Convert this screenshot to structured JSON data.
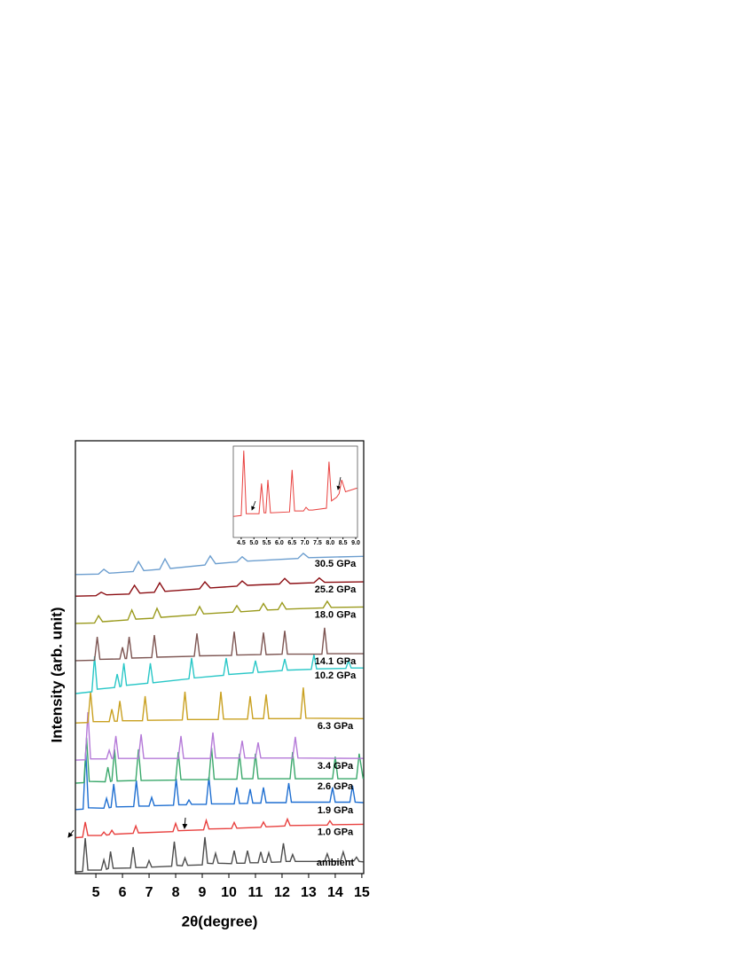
{
  "chart_data": [
    {
      "type": "line",
      "xlabel": "2θ(degree)",
      "ylabel": "Intensity (arb. unit)",
      "xlim": [
        4.23,
        15.07
      ],
      "xticks": [
        5,
        6,
        7,
        8,
        9,
        10,
        11,
        12,
        13,
        14,
        15
      ],
      "ylim": [
        0,
        100
      ],
      "series": [
        {
          "name": "ambient",
          "color": "#4d4d4d",
          "x": [
            4.25,
            4.5,
            4.6,
            4.7,
            5.2,
            5.3,
            5.4,
            5.47,
            5.55,
            5.65,
            6.3,
            6.4,
            6.5,
            6.9,
            7.0,
            7.1,
            7.85,
            7.95,
            8.05,
            8.25,
            8.35,
            8.45,
            9.0,
            9.1,
            9.2,
            9.4,
            9.5,
            9.6,
            10.1,
            10.2,
            10.3,
            10.6,
            10.7,
            10.8,
            11.1,
            11.2,
            11.3,
            11.4,
            11.5,
            11.6,
            11.95,
            12.05,
            12.15,
            12.3,
            12.4,
            12.5,
            13.6,
            13.7,
            13.8,
            14.2,
            14.3,
            14.4,
            14.7,
            14.8,
            14.9,
            15.05
          ],
          "values": [
            0.4,
            0.5,
            8.2,
            0.8,
            0.8,
            3.2,
            1.0,
            1.2,
            5.1,
            1.2,
            1.3,
            6.1,
            1.4,
            1.4,
            3.0,
            1.5,
            1.7,
            7.4,
            1.9,
            1.8,
            3.6,
            1.9,
            2.0,
            8.4,
            2.4,
            2.3,
            4.7,
            2.4,
            2.3,
            5.3,
            2.4,
            2.4,
            5.3,
            2.5,
            2.5,
            5.0,
            2.6,
            2.6,
            4.8,
            2.6,
            2.7,
            7.0,
            2.8,
            2.8,
            4.4,
            2.8,
            2.8,
            4.6,
            2.8,
            2.9,
            5.0,
            2.9,
            2.9,
            3.8,
            2.8,
            2.7
          ]
        },
        {
          "name": "1.0 GPa",
          "color": "#e8403e",
          "x": [
            4.25,
            4.5,
            4.6,
            4.7,
            5.2,
            5.3,
            5.4,
            5.5,
            5.6,
            5.7,
            6.4,
            6.5,
            6.6,
            7.9,
            8.0,
            8.1,
            9.05,
            9.15,
            9.25,
            10.1,
            10.2,
            10.3,
            11.2,
            11.3,
            11.4,
            12.1,
            12.2,
            12.3,
            13.7,
            13.8,
            13.9,
            15.05
          ],
          "values": [
            8.3,
            8.4,
            11.9,
            8.8,
            8.8,
            9.6,
            8.9,
            9.0,
            10.0,
            9.1,
            9.3,
            11.0,
            9.4,
            9.7,
            11.6,
            9.9,
            10.1,
            12.3,
            10.3,
            10.4,
            11.8,
            10.5,
            10.7,
            11.9,
            10.8,
            11.0,
            12.6,
            11.1,
            11.2,
            12.2,
            11.3,
            11.4
          ]
        },
        {
          "name": "1.9 GPa",
          "color": "#1f6fd1",
          "x": [
            4.25,
            4.52,
            4.62,
            4.72,
            5.3,
            5.4,
            5.5,
            5.57,
            5.67,
            5.77,
            6.42,
            6.52,
            6.62,
            7.0,
            7.1,
            7.2,
            7.92,
            8.02,
            8.12,
            8.4,
            8.5,
            8.6,
            9.15,
            9.25,
            9.35,
            10.2,
            10.3,
            10.4,
            10.7,
            10.8,
            10.9,
            11.2,
            11.3,
            11.4,
            12.15,
            12.25,
            12.35,
            13.8,
            13.9,
            14.0,
            14.55,
            14.65,
            14.75,
            15.05
          ],
          "values": [
            14.8,
            14.9,
            28.0,
            15.2,
            15.1,
            17.4,
            15.2,
            15.3,
            20.7,
            15.4,
            15.5,
            21.5,
            15.6,
            15.6,
            17.6,
            15.7,
            15.8,
            21.9,
            15.9,
            15.9,
            17.0,
            16.0,
            16.0,
            22.3,
            16.1,
            16.1,
            19.9,
            16.2,
            16.2,
            19.5,
            16.3,
            16.3,
            19.9,
            16.4,
            16.4,
            20.9,
            16.5,
            16.5,
            19.9,
            16.5,
            16.5,
            20.3,
            16.5,
            16.4
          ]
        },
        {
          "name": "2.6 GPa",
          "color": "#3aa86b",
          "x": [
            4.25,
            4.55,
            4.65,
            4.75,
            5.35,
            5.45,
            5.55,
            5.6,
            5.7,
            5.8,
            6.5,
            6.6,
            6.7,
            8.0,
            8.1,
            8.2,
            9.25,
            9.35,
            9.45,
            10.3,
            10.4,
            10.5,
            10.9,
            11.0,
            11.1,
            12.3,
            12.4,
            12.5,
            13.9,
            14.0,
            14.1,
            14.8,
            14.9,
            15.05
          ],
          "values": [
            20.9,
            21.0,
            31.4,
            21.3,
            21.2,
            24.6,
            21.3,
            21.4,
            28.7,
            21.4,
            21.5,
            28.7,
            21.5,
            21.6,
            28.1,
            21.7,
            21.7,
            29.1,
            21.8,
            21.8,
            27.7,
            21.9,
            21.9,
            27.7,
            21.9,
            21.9,
            28.1,
            21.9,
            21.9,
            27.0,
            21.9,
            21.9,
            27.7,
            21.9
          ]
        },
        {
          "name": "3.4 GPa",
          "color": "#b57ad8",
          "x": [
            4.25,
            4.6,
            4.7,
            4.8,
            5.4,
            5.5,
            5.6,
            5.65,
            5.75,
            5.85,
            6.6,
            6.7,
            6.8,
            8.1,
            8.2,
            8.3,
            9.3,
            9.4,
            9.5,
            10.4,
            10.5,
            10.6,
            11.0,
            11.1,
            11.2,
            12.4,
            12.5,
            12.6,
            15.05
          ],
          "values": [
            26.2,
            26.3,
            37.3,
            26.5,
            26.5,
            28.5,
            26.6,
            26.6,
            31.8,
            26.6,
            26.6,
            32.2,
            26.6,
            26.6,
            31.8,
            26.6,
            26.6,
            32.6,
            26.7,
            26.7,
            30.7,
            26.7,
            26.7,
            30.3,
            26.7,
            26.7,
            31.6,
            26.7,
            26.6
          ]
        },
        {
          "name": "6.3 GPa",
          "color": "#c9a020",
          "x": [
            4.25,
            4.7,
            4.8,
            4.9,
            5.5,
            5.6,
            5.7,
            5.8,
            5.9,
            6.0,
            6.75,
            6.85,
            6.95,
            8.25,
            8.35,
            8.45,
            9.6,
            9.7,
            9.8,
            10.7,
            10.8,
            10.9,
            11.3,
            11.4,
            11.5,
            12.7,
            12.8,
            12.9,
            15.05
          ],
          "values": [
            34.8,
            34.9,
            42.0,
            35.1,
            35.1,
            38.0,
            35.2,
            35.2,
            39.9,
            35.3,
            35.3,
            41.0,
            35.4,
            35.5,
            42.0,
            35.6,
            35.6,
            42.0,
            35.7,
            35.7,
            41.0,
            35.8,
            35.8,
            41.4,
            35.8,
            35.8,
            43.0,
            35.9,
            35.8
          ]
        },
        {
          "name": "10.2 GPa",
          "color": "#29c7c7",
          "x": [
            4.25,
            4.85,
            4.95,
            5.05,
            5.7,
            5.8,
            5.9,
            5.95,
            6.05,
            6.15,
            6.95,
            7.05,
            7.15,
            8.5,
            8.6,
            8.7,
            9.8,
            9.9,
            10.0,
            10.9,
            11.0,
            11.1,
            12.0,
            12.1,
            12.2,
            13.1,
            13.2,
            13.3,
            14.4,
            14.5,
            14.6,
            15.05
          ],
          "values": [
            41.6,
            42.0,
            50.2,
            42.6,
            43.0,
            46.1,
            43.2,
            43.3,
            48.6,
            43.5,
            44.0,
            48.6,
            44.1,
            45.0,
            49.8,
            45.2,
            45.8,
            49.8,
            46.0,
            46.4,
            49.2,
            46.5,
            46.9,
            49.6,
            47.0,
            47.2,
            50.6,
            47.3,
            47.4,
            49.2,
            47.5,
            47.5
          ]
        },
        {
          "name": "14.1 GPa",
          "color": "#7d5552",
          "x": [
            4.25,
            4.95,
            5.05,
            5.15,
            5.9,
            6.0,
            6.1,
            6.15,
            6.25,
            6.35,
            7.1,
            7.2,
            7.3,
            8.7,
            8.8,
            8.9,
            10.1,
            10.2,
            10.3,
            11.2,
            11.3,
            11.4,
            12.0,
            12.1,
            12.2,
            13.5,
            13.6,
            13.7,
            15.05
          ],
          "values": [
            49.2,
            49.3,
            54.7,
            49.5,
            49.6,
            52.3,
            49.7,
            49.7,
            54.7,
            49.8,
            49.9,
            55.1,
            50.0,
            50.2,
            55.5,
            50.3,
            50.4,
            55.9,
            50.5,
            50.6,
            55.7,
            50.6,
            50.7,
            56.1,
            50.7,
            50.7,
            56.8,
            50.8,
            50.8
          ]
        },
        {
          "name": "18.0 GPa",
          "color": "#9a9a1c",
          "x": [
            4.25,
            4.95,
            5.1,
            5.25,
            6.2,
            6.35,
            6.5,
            7.15,
            7.3,
            7.45,
            8.75,
            8.9,
            9.05,
            10.15,
            10.3,
            10.45,
            11.15,
            11.3,
            11.45,
            11.85,
            12.0,
            12.15,
            13.55,
            13.7,
            13.85,
            15.05
          ],
          "values": [
            57.8,
            57.9,
            59.6,
            58.2,
            58.6,
            60.9,
            58.8,
            59.0,
            61.3,
            59.2,
            59.8,
            61.7,
            60.0,
            60.4,
            61.9,
            60.5,
            60.8,
            62.4,
            60.9,
            61.0,
            62.6,
            61.1,
            61.4,
            62.9,
            61.5,
            61.6
          ]
        },
        {
          "name": "25.2 GPa",
          "color": "#8b0d12",
          "x": [
            4.25,
            5.0,
            5.2,
            5.4,
            6.25,
            6.45,
            6.65,
            7.2,
            7.4,
            7.6,
            8.9,
            9.1,
            9.3,
            10.3,
            10.5,
            10.7,
            11.9,
            12.1,
            12.3,
            13.2,
            13.4,
            13.6,
            15.05
          ],
          "values": [
            64.1,
            64.2,
            65.0,
            64.4,
            64.6,
            66.6,
            64.8,
            65.0,
            67.2,
            65.2,
            65.8,
            67.4,
            66.0,
            66.4,
            67.6,
            66.6,
            66.9,
            68.2,
            67.0,
            67.2,
            68.3,
            67.3,
            67.4
          ]
        },
        {
          "name": "30.5 GPa",
          "color": "#6c9ecf",
          "x": [
            4.25,
            5.1,
            5.3,
            5.5,
            6.4,
            6.6,
            6.8,
            7.4,
            7.6,
            7.8,
            9.1,
            9.3,
            9.5,
            10.3,
            10.5,
            10.7,
            12.6,
            12.8,
            13.0,
            15.05
          ],
          "values": [
            69.1,
            69.2,
            70.3,
            69.4,
            69.8,
            72.1,
            70.0,
            70.3,
            72.7,
            70.5,
            71.3,
            73.4,
            71.6,
            72.0,
            73.2,
            72.2,
            72.8,
            74.0,
            73.0,
            73.3
          ]
        }
      ]
    },
    {
      "type": "line",
      "xlim": [
        4.19,
        9.07
      ],
      "ylim": [
        0,
        100
      ],
      "xticks": [
        4.5,
        {
          "value": 5,
          "label": "5.0"
        },
        5.5,
        {
          "value": 6,
          "label": "6.0"
        },
        6.5,
        {
          "value": 7,
          "label": "7.0"
        },
        7.5,
        {
          "value": 8,
          "label": "8.0"
        },
        8.5,
        {
          "value": 9,
          "label": "9.0"
        }
      ],
      "series": [
        {
          "color": "#e8403e",
          "x": [
            4.2,
            4.5,
            4.6,
            4.7,
            5.2,
            5.3,
            5.4,
            5.47,
            5.55,
            5.65,
            6.4,
            6.5,
            6.6,
            6.95,
            7.05,
            7.15,
            7.3,
            7.85,
            7.95,
            8.05,
            8.25,
            8.35,
            8.45,
            8.6,
            9.05
          ],
          "values": [
            23,
            24,
            95,
            26,
            26,
            59,
            27,
            27,
            63,
            27,
            28,
            74,
            29,
            29,
            33,
            30,
            30,
            32,
            83,
            40,
            44,
            48,
            63,
            50,
            54
          ]
        }
      ]
    }
  ]
}
